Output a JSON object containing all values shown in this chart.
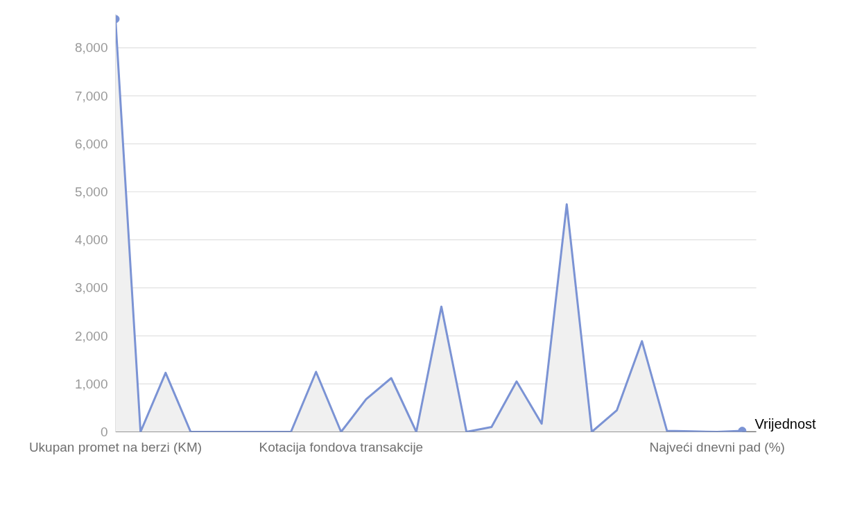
{
  "chart_data": {
    "type": "area",
    "categories": [
      "Ukupan promet na berzi (KM)",
      null,
      null,
      null,
      null,
      null,
      null,
      null,
      null,
      "Kotacija fondova transakcije",
      null,
      null,
      null,
      null,
      null,
      null,
      null,
      null,
      null,
      null,
      null,
      null,
      null,
      null,
      "Najveći dnevni pad (%)",
      null
    ],
    "series": [
      {
        "name": "Vrijednost",
        "color": "#7b93d4",
        "values": [
          8600,
          0,
          1230,
          0,
          0,
          0,
          0,
          0,
          1250,
          0,
          680,
          1120,
          0,
          2610,
          0,
          100,
          1050,
          170,
          4740,
          0,
          450,
          1890,
          20,
          10,
          0,
          20
        ]
      }
    ],
    "ylim": [
      0,
      8700
    ],
    "yticks": [
      0,
      {
        "value": 1000,
        "label": "1,000"
      },
      {
        "value": 2000,
        "label": "2,000"
      },
      {
        "value": 3000,
        "label": "3,000"
      },
      {
        "value": 4000,
        "label": "4,000"
      },
      {
        "value": 5000,
        "label": "5,000"
      },
      {
        "value": 6000,
        "label": "6,000"
      },
      {
        "value": 7000,
        "label": "7,000"
      },
      {
        "value": 8000,
        "label": "8,000"
      }
    ],
    "grid": "y",
    "legend": "right"
  }
}
